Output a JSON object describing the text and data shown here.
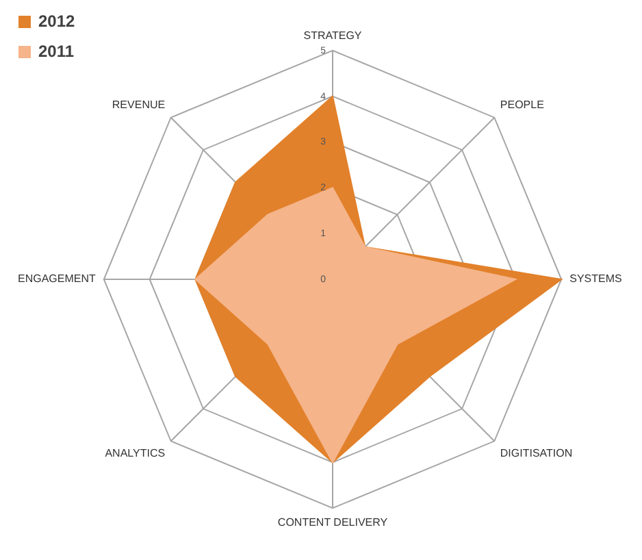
{
  "chart_data": {
    "type": "radar",
    "categories": [
      "STRATEGY",
      "PEOPLE",
      "SYSTEMS",
      "DIGITISATION",
      "CONTENT DELIVERY",
      "ANALYTICS",
      "ENGAGEMENT",
      "REVENUE"
    ],
    "series": [
      {
        "name": "2012",
        "color": "#e2812b",
        "values": [
          4,
          1,
          5,
          3,
          4,
          3,
          3,
          3
        ]
      },
      {
        "name": "2011",
        "color": "#f5b48a",
        "values": [
          2,
          1,
          4,
          2,
          4,
          2,
          3,
          2
        ]
      }
    ],
    "ylim": [
      0,
      5
    ],
    "yticks": [
      0,
      1,
      2,
      3,
      4,
      5
    ],
    "grid": true,
    "legend": "top left",
    "marker": "none"
  }
}
